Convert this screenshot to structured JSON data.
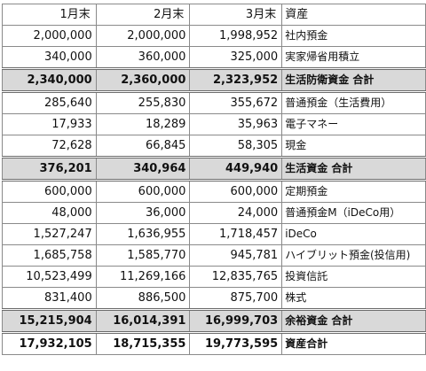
{
  "header": {
    "col1": "1月末",
    "col2": "2月末",
    "col3": "3月末",
    "label": "資産"
  },
  "rows": [
    {
      "v1": "2,000,000",
      "v2": "2,000,000",
      "v3": "1,998,952",
      "label": "社内預金"
    },
    {
      "v1": "340,000",
      "v2": "360,000",
      "v3": "325,000",
      "label": "実家帰省用積立"
    },
    {
      "v1": "2,340,000",
      "v2": "2,360,000",
      "v3": "2,323,952",
      "label": "生活防衛資金 合計"
    },
    {
      "v1": "285,640",
      "v2": "255,830",
      "v3": "355,672",
      "label": "普通預金（生活費用）"
    },
    {
      "v1": "17,933",
      "v2": "18,289",
      "v3": "35,963",
      "label": "電子マネー"
    },
    {
      "v1": "72,628",
      "v2": "66,845",
      "v3": "58,305",
      "label": "現金"
    },
    {
      "v1": "376,201",
      "v2": "340,964",
      "v3": "449,940",
      "label": "生活資金 合計"
    },
    {
      "v1": "600,000",
      "v2": "600,000",
      "v3": "600,000",
      "label": "定期預金"
    },
    {
      "v1": "48,000",
      "v2": "36,000",
      "v3": "24,000",
      "label": "普通預金M（iDeCo用）"
    },
    {
      "v1": "1,527,247",
      "v2": "1,636,955",
      "v3": "1,718,457",
      "label": "iDeCo"
    },
    {
      "v1": "1,685,758",
      "v2": "1,585,770",
      "v3": "945,781",
      "label": "ハイブリット預金(投信用)"
    },
    {
      "v1": "10,523,499",
      "v2": "11,269,166",
      "v3": "12,835,765",
      "label": "投資信託"
    },
    {
      "v1": "831,400",
      "v2": "886,500",
      "v3": "875,700",
      "label": "株式"
    },
    {
      "v1": "15,215,904",
      "v2": "16,014,391",
      "v3": "16,999,703",
      "label": "余裕資金 合計"
    },
    {
      "v1": "17,932,105",
      "v2": "18,715,355",
      "v3": "19,773,595",
      "label": "資産合計"
    }
  ]
}
